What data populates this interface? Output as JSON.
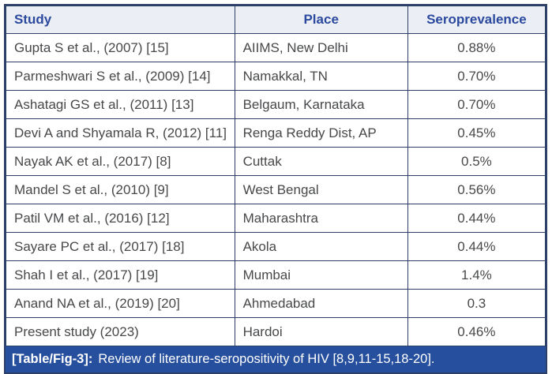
{
  "table": {
    "columns": [
      "Study",
      "Place",
      "Seroprevalence"
    ],
    "rows": [
      [
        "Gupta S et al., (2007) [15]",
        "AIIMS, New Delhi",
        "0.88%"
      ],
      [
        "Parmeshwari S et al., (2009) [14]",
        "Namakkal, TN",
        "0.70%"
      ],
      [
        "Ashatagi GS et al., (2011) [13]",
        "Belgaum, Karnataka",
        "0.70%"
      ],
      [
        "Devi A and Shyamala R, (2012) [11]",
        "Renga Reddy Dist, AP",
        "0.45%"
      ],
      [
        "Nayak AK et al., (2017) [8]",
        "Cuttak",
        "0.5%"
      ],
      [
        "Mandel S et al., (2010) [9]",
        "West Bengal",
        "0.56%"
      ],
      [
        "Patil VM et al., (2016) [12]",
        "Maharashtra",
        "0.44%"
      ],
      [
        "Sayare PC et al., (2017) [18]",
        "Akola",
        "0.44%"
      ],
      [
        "Shah I et al., (2017) [19]",
        "Mumbai",
        "1.4%"
      ],
      [
        "Anand NA et al., (2019) [20]",
        "Ahmedabad",
        "0.3"
      ],
      [
        "Present study (2023)",
        "Hardoi",
        "0.46%"
      ]
    ]
  },
  "caption": {
    "label": "[Table/Fig-3]:",
    "text": "Review of literature-seropositivity of HIV [8,9,11-15,18-20]."
  },
  "colors": {
    "header_bg": "#eceef5",
    "header_text": "#2b4a9e",
    "grid_border": "#2c4068",
    "caption_bg": "#264f9e",
    "caption_text": "#ffffff",
    "body_text": "#47484a"
  }
}
